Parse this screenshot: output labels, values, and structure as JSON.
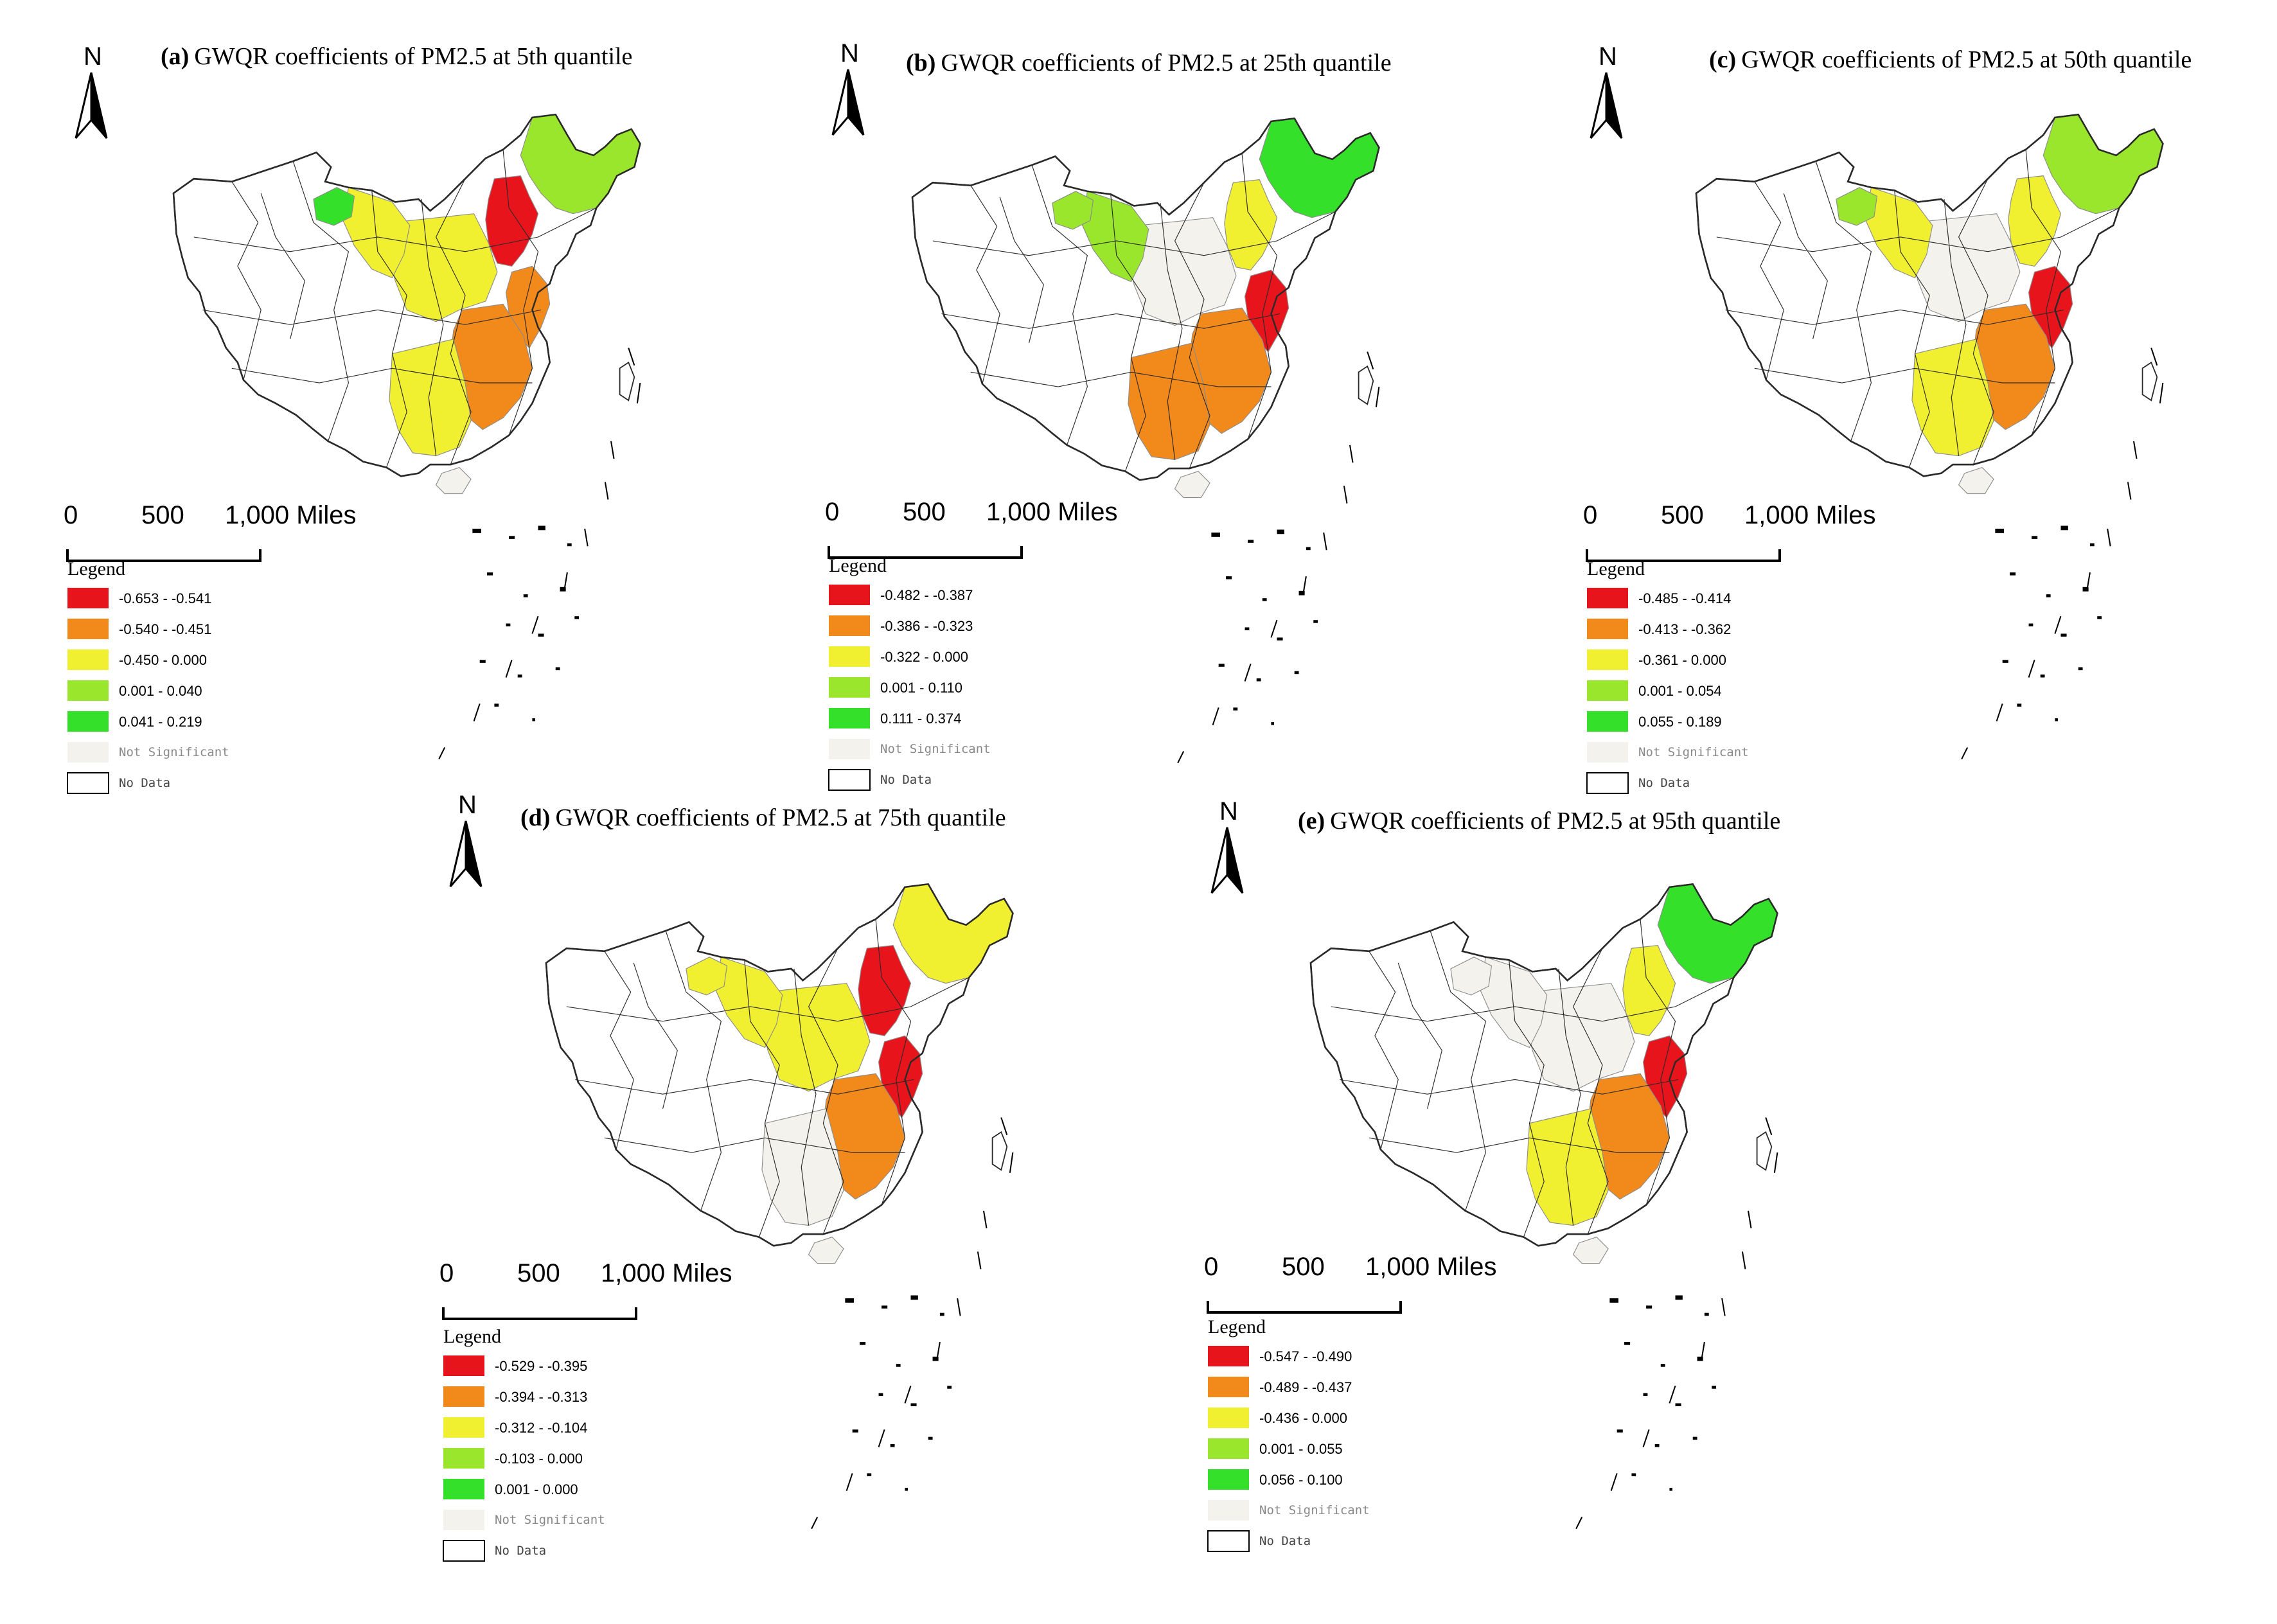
{
  "figure": "GWQR coefficient maps of PM2.5 across China at five quantiles",
  "north_label": "N",
  "scale_bar": {
    "tick_0": "0",
    "tick_1": "500",
    "tick_2": "1,000 Miles"
  },
  "legend_title": "Legend",
  "not_significant_label": "Not Significant",
  "no_data_label": "No Data",
  "colors": {
    "red": "#e8141c",
    "orange": "#f2891b",
    "yellow": "#f0ef30",
    "lightgreen": "#9ae62c",
    "green": "#34e02a",
    "not_significant": "#f3f2ec",
    "no_data": "#ffffff",
    "boundary": "#8c8c8c",
    "outline": "#2a2a2a"
  },
  "panels": [
    {
      "id": "a",
      "label": "(a)",
      "title": "GWQR coefficients of PM2.5 at 5th quantile",
      "classes": [
        {
          "range": "-0.653 - -0.541",
          "color": "red"
        },
        {
          "range": "-0.540 - -0.451",
          "color": "orange"
        },
        {
          "range": "-0.450 - 0.000",
          "color": "yellow"
        },
        {
          "range": "0.001 - 0.040",
          "color": "lightgreen"
        },
        {
          "range": "0.041 - 0.219",
          "color": "green"
        }
      ],
      "regions": {
        "northeast": "lightgreen",
        "north": "red",
        "east_coast": "orange",
        "southeast": "orange",
        "central": "yellow",
        "northwest": "yellow",
        "hexi": "green",
        "south": "yellow",
        "hainan": "not_significant"
      }
    },
    {
      "id": "b",
      "label": "(b)",
      "title": "GWQR coefficients of PM2.5 at 25th quantile",
      "classes": [
        {
          "range": "-0.482 - -0.387",
          "color": "red"
        },
        {
          "range": "-0.386 - -0.323",
          "color": "orange"
        },
        {
          "range": "-0.322 - 0.000",
          "color": "yellow"
        },
        {
          "range": "0.001 - 0.110",
          "color": "lightgreen"
        },
        {
          "range": "0.111 - 0.374",
          "color": "green"
        }
      ],
      "regions": {
        "northeast": "green",
        "north": "yellow",
        "east_coast": "red",
        "southeast": "orange",
        "central": "not_significant",
        "northwest": "lightgreen",
        "hexi": "lightgreen",
        "south": "orange",
        "hainan": "not_significant"
      }
    },
    {
      "id": "c",
      "label": "(c)",
      "title": "GWQR coefficients of PM2.5 at 50th quantile",
      "classes": [
        {
          "range": "-0.485 - -0.414",
          "color": "red"
        },
        {
          "range": "-0.413 - -0.362",
          "color": "orange"
        },
        {
          "range": "-0.361 - 0.000",
          "color": "yellow"
        },
        {
          "range": "0.001 - 0.054",
          "color": "lightgreen"
        },
        {
          "range": "0.055 - 0.189",
          "color": "green"
        }
      ],
      "regions": {
        "northeast": "lightgreen",
        "north": "yellow",
        "east_coast": "red",
        "southeast": "orange",
        "central": "not_significant",
        "northwest": "yellow",
        "hexi": "lightgreen",
        "south": "yellow",
        "hainan": "not_significant"
      }
    },
    {
      "id": "d",
      "label": "(d)",
      "title": "GWQR coefficients of PM2.5 at 75th quantile",
      "classes": [
        {
          "range": "-0.529 - -0.395",
          "color": "red"
        },
        {
          "range": "-0.394 - -0.313",
          "color": "orange"
        },
        {
          "range": "-0.312 - -0.104",
          "color": "yellow"
        },
        {
          "range": "-0.103 - 0.000",
          "color": "lightgreen"
        },
        {
          "range": "0.001 - 0.000",
          "color": "green"
        }
      ],
      "regions": {
        "northeast": "yellow",
        "north": "red",
        "east_coast": "red",
        "southeast": "orange",
        "central": "yellow",
        "northwest": "yellow",
        "hexi": "yellow",
        "south": "not_significant",
        "hainan": "not_significant"
      }
    },
    {
      "id": "e",
      "label": "(e)",
      "title": "GWQR coefficients of PM2.5 at 95th quantile",
      "classes": [
        {
          "range": "-0.547 - -0.490",
          "color": "red"
        },
        {
          "range": "-0.489 - -0.437",
          "color": "orange"
        },
        {
          "range": "-0.436 - 0.000",
          "color": "yellow"
        },
        {
          "range": "0.001 - 0.055",
          "color": "lightgreen"
        },
        {
          "range": "0.056 - 0.100",
          "color": "green"
        }
      ],
      "regions": {
        "northeast": "green",
        "north": "yellow",
        "east_coast": "red",
        "southeast": "orange",
        "central": "not_significant",
        "northwest": "not_significant",
        "hexi": "not_significant",
        "south": "yellow",
        "hainan": "not_significant"
      }
    }
  ]
}
